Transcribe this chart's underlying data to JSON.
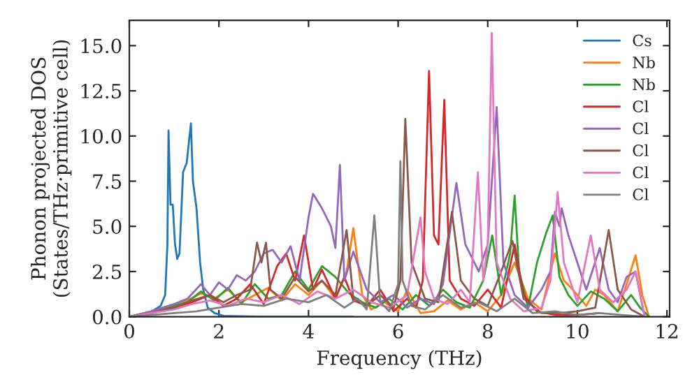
{
  "chart_data": {
    "type": "line",
    "xlabel": "Frequency (THz)",
    "ylabel": "Phonon projected DOS\n(States/THz·primitive cell)",
    "xlim": [
      0,
      12.06
    ],
    "ylim": [
      0,
      16.4
    ],
    "xticks": [
      0,
      2,
      4,
      6,
      8,
      10,
      12
    ],
    "yticks": [
      {
        "value": 0,
        "label": "0.0"
      },
      {
        "value": 2.5,
        "label": "2.5"
      },
      {
        "value": 5,
        "label": "5.0"
      },
      {
        "value": 7.5,
        "label": "7.5"
      },
      {
        "value": 10,
        "label": "10.0"
      },
      {
        "value": 12.5,
        "label": "12.5"
      },
      {
        "value": 15,
        "label": "15.0"
      }
    ],
    "grid": false,
    "legend": "top right",
    "series": [
      {
        "name": "Cs",
        "color": "#1f77b4",
        "x": [
          0,
          0.3,
          0.5,
          0.7,
          0.8,
          0.85,
          0.875,
          0.92,
          0.97,
          1.02,
          1.07,
          1.12,
          1.2,
          1.28,
          1.375,
          1.42,
          1.5,
          1.58,
          1.65,
          1.75,
          1.9,
          2.1,
          3,
          5
        ],
        "values": [
          0,
          0.1,
          0.3,
          0.6,
          1.2,
          4,
          10.3,
          6.2,
          6.2,
          4,
          3.2,
          3.5,
          8,
          8.5,
          10.7,
          7.5,
          6,
          3,
          1.5,
          0.5,
          0.2,
          0.05,
          0,
          0
        ]
      },
      {
        "name": "Nb",
        "color": "#ff7f0e",
        "x": [
          0,
          0.5,
          1,
          1.3,
          1.6,
          1.9,
          2.2,
          2.5,
          2.8,
          3.1,
          3.4,
          3.7,
          4,
          4.3,
          4.6,
          4.85,
          5.0,
          5.1,
          5.2,
          5.4,
          5.7,
          6.0,
          6.2,
          6.5,
          6.8,
          7.1,
          7.4,
          7.7,
          8.0,
          8.3,
          8.6,
          8.9,
          9.2,
          9.5,
          9.7,
          9.9,
          10.2,
          10.4,
          10.6,
          10.9,
          11.1,
          11.3,
          11.45,
          11.6
        ],
        "values": [
          0,
          0.3,
          0.7,
          0.9,
          1.3,
          1.0,
          1.5,
          0.8,
          1.2,
          1.6,
          0.9,
          1.8,
          1.2,
          2.0,
          1.0,
          2.5,
          4.9,
          3.0,
          1.2,
          0.4,
          0.8,
          0.3,
          1.5,
          0.2,
          0.3,
          0.9,
          0.4,
          0.8,
          0.3,
          1.2,
          3.0,
          1.0,
          0.4,
          3.5,
          2.0,
          1.5,
          0.6,
          1.5,
          1.2,
          0.3,
          1.8,
          3.4,
          1.2,
          0
        ]
      },
      {
        "name": "Nb",
        "color": "#2ca02c",
        "x": [
          0,
          0.5,
          1,
          1.3,
          1.6,
          1.9,
          2.2,
          2.5,
          2.8,
          3.1,
          3.4,
          3.7,
          4,
          4.3,
          4.6,
          4.9,
          5.2,
          5.5,
          5.8,
          6.1,
          6.4,
          6.7,
          7.0,
          7.3,
          7.6,
          7.9,
          8.1,
          8.3,
          8.5,
          8.6,
          8.7,
          8.9,
          9.1,
          9.3,
          9.45,
          9.6,
          9.8,
          10.0,
          10.3,
          10.6,
          10.9,
          11.2,
          11.4,
          11.6
        ],
        "values": [
          0,
          0.3,
          0.6,
          0.8,
          1.4,
          0.9,
          1.6,
          0.7,
          1.8,
          1.0,
          1.2,
          2.5,
          1.5,
          2.8,
          2.2,
          1.3,
          0.8,
          0.5,
          1.0,
          0.4,
          1.2,
          0.6,
          1.5,
          0.8,
          0.5,
          2.0,
          4.5,
          1.2,
          3.5,
          6.7,
          2.5,
          0.5,
          3.0,
          4.6,
          5.6,
          2.2,
          1.2,
          0.6,
          1.4,
          1.0,
          0.3,
          1.2,
          0.5,
          0
        ]
      },
      {
        "name": "Cl",
        "color": "#d62728",
        "x": [
          0,
          0.5,
          1,
          1.4,
          1.8,
          2.1,
          2.4,
          2.7,
          3.0,
          3.3,
          3.5,
          3.7,
          3.9,
          4.1,
          4.3,
          4.6,
          4.8,
          5.0,
          5.3,
          5.6,
          5.9,
          6.2,
          6.4,
          6.55,
          6.69,
          6.8,
          6.9,
          7.03,
          7.15,
          7.4,
          7.7,
          8.0,
          8.3,
          8.6,
          8.8,
          9.1,
          9.5,
          10,
          10.5
        ],
        "values": [
          0,
          0.2,
          0.5,
          0.8,
          1.2,
          0.6,
          1.0,
          1.8,
          0.7,
          2.8,
          3.5,
          2.0,
          4.5,
          1.5,
          2.6,
          1.0,
          2.2,
          0.9,
          0.6,
          1.5,
          0.3,
          1.0,
          0.5,
          2.0,
          13.6,
          4.5,
          4.0,
          12.0,
          2.0,
          1.0,
          0.6,
          1.5,
          0.5,
          4.0,
          1.2,
          0.3,
          0.1,
          0.1,
          0.2
        ]
      },
      {
        "name": "Cl",
        "color": "#9467bd",
        "x": [
          0,
          0.5,
          1,
          1.3,
          1.6,
          1.8,
          2.0,
          2.2,
          2.4,
          2.6,
          2.8,
          3.0,
          3.2,
          3.4,
          3.6,
          3.8,
          4.0,
          4.1,
          4.3,
          4.5,
          4.6,
          4.7,
          4.8,
          5.0,
          5.3,
          5.6,
          5.9,
          6.2,
          6.5,
          6.8,
          7.0,
          7.3,
          7.5,
          7.8,
          8.0,
          8.2,
          8.35,
          8.6,
          8.9,
          9.2,
          9.4,
          9.5,
          9.6,
          9.65,
          9.8,
          10.0,
          10.2,
          10.5,
          10.7,
          10.9,
          11.1,
          11.3,
          11.5
        ],
        "values": [
          0,
          0.3,
          0.7,
          1.0,
          1.8,
          1.2,
          1.9,
          1.5,
          2.3,
          2.0,
          2.5,
          3.5,
          3.7,
          3.0,
          3.9,
          2.0,
          5.5,
          6.8,
          6.0,
          5.0,
          3.8,
          8.4,
          2.0,
          3.6,
          1.5,
          0.8,
          1.2,
          0.5,
          1.0,
          0.7,
          1.8,
          7.4,
          4.0,
          2.5,
          4.0,
          11.6,
          3.0,
          1.2,
          0.5,
          1.5,
          2.5,
          5.8,
          5.0,
          6.0,
          4.5,
          3.0,
          1.5,
          3.8,
          1.5,
          0.8,
          2.2,
          2.5,
          0
        ]
      },
      {
        "name": "Cl",
        "color": "#8c564b",
        "x": [
          0,
          0.5,
          1,
          1.4,
          1.8,
          2.1,
          2.4,
          2.7,
          2.85,
          2.95,
          3.05,
          3.15,
          3.4,
          3.7,
          4.0,
          4.3,
          4.6,
          4.85,
          5.0,
          5.3,
          5.6,
          5.9,
          6.05,
          6.16,
          6.3,
          6.6,
          6.9,
          7.2,
          7.4,
          7.7,
          8.0,
          8.3,
          8.55,
          8.8,
          9.2,
          9.6,
          10.0,
          10.4,
          10.7,
          10.9,
          11.2,
          11.5
        ],
        "values": [
          0,
          0.2,
          0.5,
          0.9,
          1.2,
          0.8,
          1.2,
          1.5,
          4.1,
          3.0,
          4.1,
          1.5,
          1.0,
          2.2,
          1.4,
          2.0,
          1.2,
          4.8,
          1.0,
          0.6,
          1.2,
          0.5,
          2.0,
          10.95,
          3.0,
          1.0,
          0.8,
          5.8,
          2.0,
          1.0,
          0.6,
          2.5,
          4.2,
          1.0,
          0.2,
          0.2,
          0.3,
          0.5,
          4.8,
          1.5,
          0.4,
          0
        ]
      },
      {
        "name": "Cl",
        "color": "#e377c2",
        "x": [
          0,
          0.5,
          1,
          1.4,
          1.8,
          2.2,
          2.6,
          3.0,
          3.4,
          3.8,
          4.2,
          4.6,
          5.0,
          5.4,
          5.8,
          6.2,
          6.5,
          6.6,
          6.8,
          7.1,
          7.4,
          7.6,
          7.78,
          7.9,
          8.0,
          8.09,
          8.2,
          8.5,
          8.8,
          9.2,
          9.4,
          9.56,
          9.7,
          10.0,
          10.3,
          10.5,
          10.8,
          11.1,
          11.3,
          11.5
        ],
        "values": [
          0,
          0.2,
          0.4,
          0.7,
          0.9,
          0.6,
          1.0,
          0.8,
          1.2,
          0.7,
          1.4,
          1.0,
          1.5,
          0.8,
          0.5,
          1.2,
          5.5,
          2.5,
          1.0,
          0.7,
          1.5,
          0.8,
          8.0,
          2.0,
          4.0,
          15.7,
          3.0,
          1.0,
          0.3,
          0.5,
          2.0,
          6.9,
          3.0,
          0.8,
          4.5,
          1.5,
          0.8,
          1.5,
          2.5,
          0
        ]
      },
      {
        "name": "Cl",
        "color": "#7f7f7f",
        "x": [
          0,
          0.5,
          1,
          1.5,
          2.0,
          2.5,
          3.0,
          3.5,
          4.0,
          4.4,
          4.8,
          5.1,
          5.3,
          5.47,
          5.6,
          5.8,
          6.0,
          6.05,
          6.1,
          6.3,
          6.6,
          7.0,
          7.4,
          7.8,
          8.2,
          8.6,
          9.0,
          9.5,
          10,
          10.5,
          11,
          11.5
        ],
        "values": [
          0,
          0.1,
          0.2,
          0.3,
          0.5,
          0.7,
          0.6,
          1.0,
          0.8,
          1.2,
          0.5,
          1.0,
          0.4,
          5.6,
          0.8,
          0.3,
          1.8,
          8.6,
          2.0,
          0.6,
          0.4,
          1.2,
          0.5,
          0.8,
          0.3,
          1.0,
          0.2,
          0.3,
          0.1,
          0.2,
          0.1,
          0
        ]
      }
    ]
  }
}
